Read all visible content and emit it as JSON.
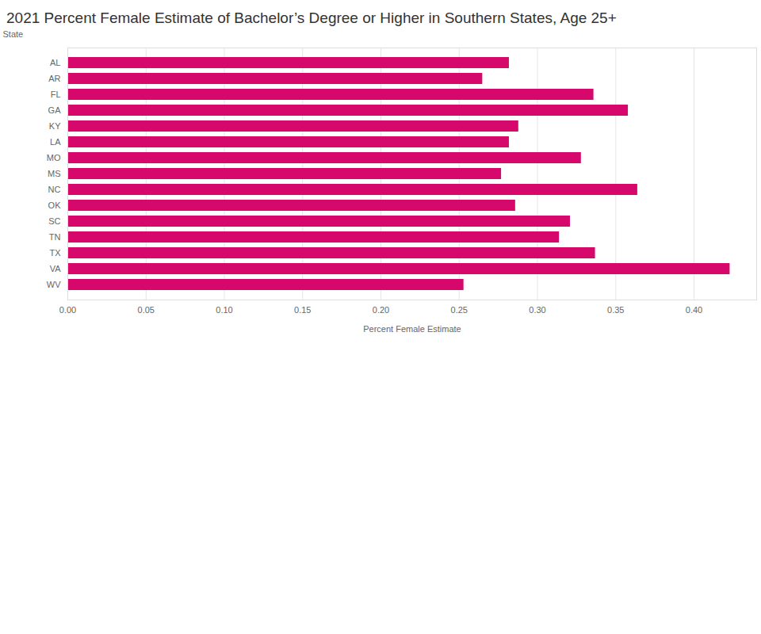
{
  "chart_data": {
    "type": "bar",
    "title": "2021 Percent Female Estimate of Bachelor’s Degree or Higher in Southern States, Age 25+",
    "x_label": "Percent Female Estimate",
    "y_label": "State",
    "orientation": "horizontal",
    "categories": [
      "AL",
      "AR",
      "FL",
      "GA",
      "KY",
      "LA",
      "MO",
      "MS",
      "NC",
      "OK",
      "SC",
      "TN",
      "TX",
      "VA",
      "WV"
    ],
    "values": [
      0.282,
      0.265,
      0.336,
      0.358,
      0.288,
      0.282,
      0.328,
      0.277,
      0.364,
      0.286,
      0.321,
      0.314,
      0.337,
      0.423,
      0.253
    ],
    "color": "#d6086c",
    "xlim": [
      0,
      0.44
    ],
    "xticks": [
      {
        "value": 0,
        "label": "0.00"
      },
      {
        "value": 0.05,
        "label": "0.05"
      },
      {
        "value": 0.1,
        "label": "0.10"
      },
      {
        "value": 0.15,
        "label": "0.15"
      },
      {
        "value": 0.2,
        "label": "0.20"
      },
      {
        "value": 0.25,
        "label": "0.25"
      },
      {
        "value": 0.3,
        "label": "0.30"
      },
      {
        "value": 0.35,
        "label": "0.35"
      },
      {
        "value": 0.4,
        "label": "0.40"
      }
    ],
    "grid": true
  }
}
